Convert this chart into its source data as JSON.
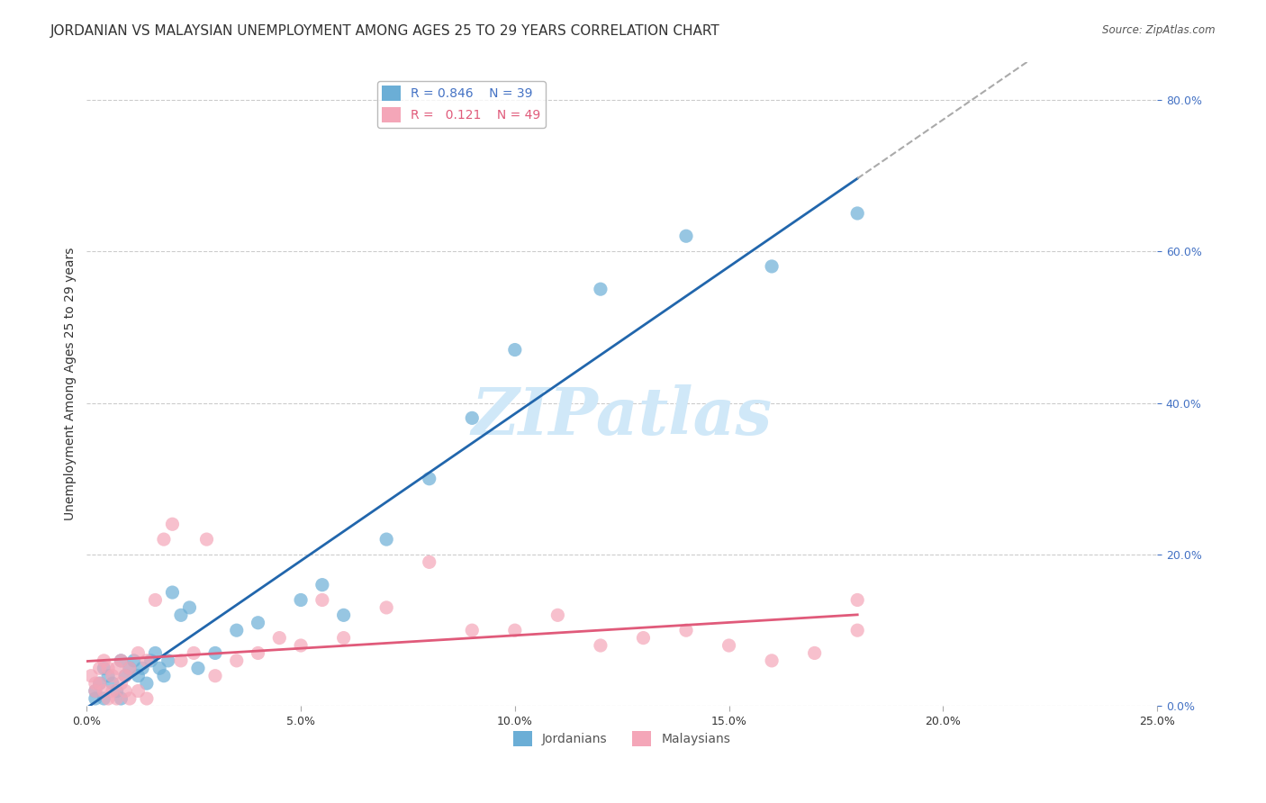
{
  "title": "JORDANIAN VS MALAYSIAN UNEMPLOYMENT AMONG AGES 25 TO 29 YEARS CORRELATION CHART",
  "source": "Source: ZipAtlas.com",
  "xlabel": "",
  "ylabel": "Unemployment Among Ages 25 to 29 years",
  "xlim": [
    0.0,
    0.25
  ],
  "ylim": [
    0.0,
    0.85
  ],
  "xticks": [
    0.0,
    0.05,
    0.1,
    0.15,
    0.2,
    0.25
  ],
  "yticks_right": [
    0.0,
    0.2,
    0.4,
    0.6,
    0.8
  ],
  "jordan_color": "#6baed6",
  "jordan_color_line": "#2166ac",
  "malaysia_color": "#f4a6b8",
  "malaysia_color_line": "#e05a7a",
  "R_jordan": 0.846,
  "N_jordan": 39,
  "R_malaysia": 0.121,
  "N_malaysia": 49,
  "jordan_x": [
    0.002,
    0.003,
    0.004,
    0.005,
    0.006,
    0.007,
    0.008,
    0.009,
    0.01,
    0.011,
    0.012,
    0.013,
    0.014,
    0.015,
    0.016,
    0.017,
    0.018,
    0.019,
    0.02,
    0.022,
    0.024,
    0.026,
    0.03,
    0.035,
    0.04,
    0.05,
    0.055,
    0.06,
    0.07,
    0.08,
    0.09,
    0.1,
    0.12,
    0.14,
    0.16,
    0.18,
    0.002,
    0.004,
    0.008
  ],
  "jordan_y": [
    0.02,
    0.03,
    0.05,
    0.04,
    0.03,
    0.02,
    0.06,
    0.04,
    0.05,
    0.06,
    0.04,
    0.05,
    0.03,
    0.06,
    0.07,
    0.05,
    0.04,
    0.06,
    0.15,
    0.12,
    0.13,
    0.05,
    0.07,
    0.1,
    0.11,
    0.14,
    0.16,
    0.12,
    0.22,
    0.3,
    0.38,
    0.47,
    0.55,
    0.62,
    0.58,
    0.65,
    0.01,
    0.01,
    0.01
  ],
  "malaysia_x": [
    0.001,
    0.002,
    0.003,
    0.004,
    0.005,
    0.006,
    0.007,
    0.008,
    0.009,
    0.01,
    0.012,
    0.014,
    0.016,
    0.018,
    0.02,
    0.022,
    0.025,
    0.028,
    0.03,
    0.035,
    0.04,
    0.045,
    0.05,
    0.055,
    0.06,
    0.07,
    0.08,
    0.09,
    0.1,
    0.11,
    0.12,
    0.13,
    0.14,
    0.15,
    0.16,
    0.17,
    0.18,
    0.002,
    0.003,
    0.004,
    0.005,
    0.006,
    0.007,
    0.008,
    0.009,
    0.01,
    0.012,
    0.014,
    0.18
  ],
  "malaysia_y": [
    0.04,
    0.03,
    0.05,
    0.06,
    0.05,
    0.04,
    0.05,
    0.06,
    0.04,
    0.05,
    0.07,
    0.06,
    0.14,
    0.22,
    0.24,
    0.06,
    0.07,
    0.22,
    0.04,
    0.06,
    0.07,
    0.09,
    0.08,
    0.14,
    0.09,
    0.13,
    0.19,
    0.1,
    0.1,
    0.12,
    0.08,
    0.09,
    0.1,
    0.08,
    0.06,
    0.07,
    0.14,
    0.02,
    0.03,
    0.02,
    0.01,
    0.02,
    0.01,
    0.03,
    0.02,
    0.01,
    0.02,
    0.01,
    0.1
  ],
  "background_color": "#ffffff",
  "grid_color": "#cccccc",
  "watermark_text": "ZIPatlas",
  "watermark_color": "#d0e8f8",
  "title_fontsize": 11,
  "axis_label_fontsize": 10,
  "tick_fontsize": 9,
  "legend_fontsize": 10
}
